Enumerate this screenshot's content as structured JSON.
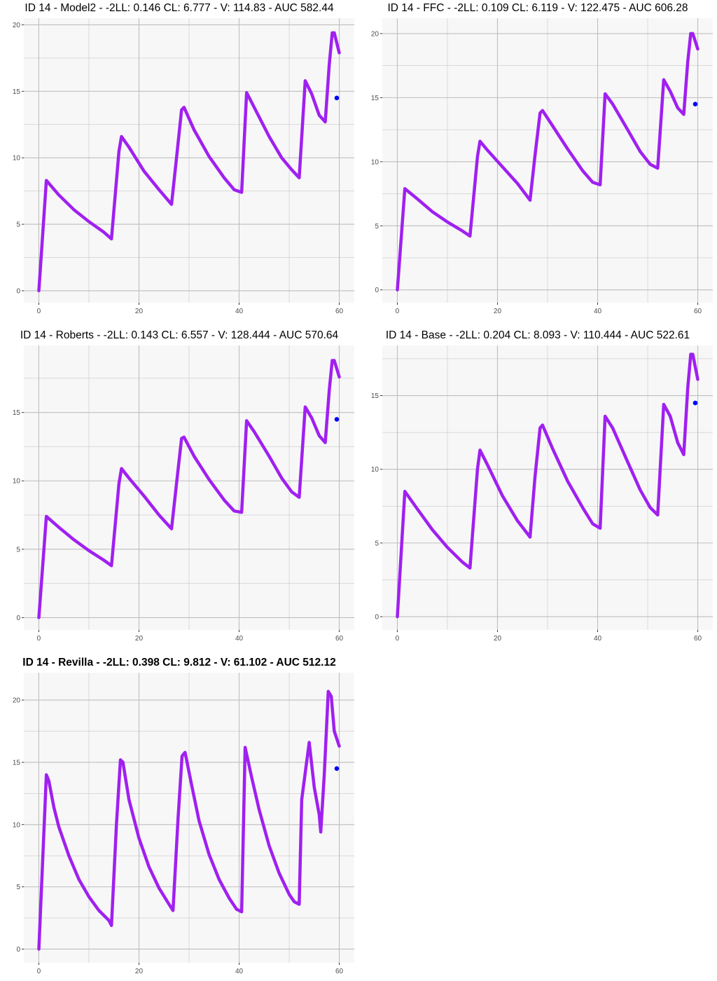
{
  "colors": {
    "line": "#A020F0",
    "point": "#0000FF",
    "panel_bg": "#F7F7F7",
    "grid": "#BEBEBE",
    "tick_text": "#4D4D4D"
  },
  "chart_data": [
    {
      "type": "line",
      "title": "ID 14 - Model2 - -2LL: 0.146 CL: 6.777 - V: 114.83 - AUC 582.44",
      "xlim": [
        -3,
        63
      ],
      "ylim": [
        -0.9,
        20.5
      ],
      "x_ticks": [
        0,
        20,
        40,
        60
      ],
      "y_ticks": [
        0,
        5,
        10,
        15,
        20
      ],
      "grid": true,
      "series": [
        {
          "x": [
            0,
            1.5,
            4,
            7,
            10,
            13,
            14.5,
            16,
            16.5,
            18,
            21,
            24,
            26.5,
            27.5,
            28.5,
            29,
            31,
            34,
            37,
            39,
            40.5,
            41.5,
            43,
            46,
            48.5,
            50.5,
            52,
            53.2,
            54.5,
            56,
            57.2,
            58,
            58.6,
            59,
            60
          ],
          "y": [
            0,
            8.3,
            7.2,
            6.1,
            5.2,
            4.4,
            3.9,
            10.5,
            11.6,
            10.8,
            9.0,
            7.6,
            6.5,
            10.0,
            13.6,
            13.8,
            12.1,
            10.1,
            8.5,
            7.6,
            7.4,
            14.9,
            13.8,
            11.6,
            10.0,
            9.1,
            8.5,
            15.8,
            14.8,
            13.2,
            12.7,
            17.0,
            19.4,
            19.4,
            17.9
          ]
        },
        {
          "x": [
            59.5
          ],
          "y": [
            14.5
          ]
        }
      ]
    },
    {
      "type": "line",
      "title": "ID 14 - FFC - -2LL: 0.109 CL: 6.119 - V: 122.475 - AUC 606.28",
      "xlim": [
        -3,
        63
      ],
      "ylim": [
        -1,
        21.2
      ],
      "x_ticks": [
        0,
        20,
        40,
        60
      ],
      "y_ticks": [
        0,
        5,
        10,
        15,
        20
      ],
      "grid": true,
      "series": [
        {
          "x": [
            0,
            1.5,
            4,
            7,
            10,
            13,
            14.5,
            16,
            16.5,
            18,
            21,
            24,
            26.5,
            27.5,
            28.5,
            29,
            31,
            34,
            37,
            39,
            40.5,
            41.5,
            43,
            46,
            48.5,
            50.5,
            52,
            53.2,
            54.5,
            56,
            57.2,
            58,
            58.6,
            59,
            60
          ],
          "y": [
            0,
            7.9,
            7.1,
            6.1,
            5.3,
            4.6,
            4.2,
            10.4,
            11.6,
            10.9,
            9.6,
            8.3,
            7.0,
            10.5,
            13.8,
            14.0,
            12.8,
            11.0,
            9.3,
            8.4,
            8.2,
            15.3,
            14.5,
            12.5,
            10.8,
            9.8,
            9.5,
            16.4,
            15.5,
            14.2,
            13.7,
            17.8,
            20.0,
            20.0,
            18.8
          ]
        },
        {
          "x": [
            59.5
          ],
          "y": [
            14.5
          ]
        }
      ]
    },
    {
      "type": "line",
      "title": "ID 14 - Roberts - -2LL: 0.143 CL: 6.557 - V: 128.444 - AUC 570.64",
      "xlim": [
        -3,
        63
      ],
      "ylim": [
        -0.9,
        19.9
      ],
      "x_ticks": [
        0,
        20,
        40,
        60
      ],
      "y_ticks": [
        0,
        5,
        10,
        15
      ],
      "grid": true,
      "series": [
        {
          "x": [
            0,
            1.5,
            4,
            7,
            10,
            13,
            14.5,
            16,
            16.5,
            18,
            21,
            24,
            26.5,
            27.5,
            28.5,
            29,
            31,
            34,
            37,
            39,
            40.5,
            41.5,
            43,
            46,
            48.5,
            50.5,
            52,
            53.2,
            54.5,
            56,
            57.2,
            58,
            58.6,
            59,
            60
          ],
          "y": [
            0,
            7.4,
            6.6,
            5.7,
            4.9,
            4.2,
            3.8,
            9.8,
            10.9,
            10.2,
            8.9,
            7.5,
            6.5,
            9.8,
            13.1,
            13.2,
            11.8,
            10.1,
            8.6,
            7.8,
            7.7,
            14.4,
            13.6,
            11.8,
            10.2,
            9.2,
            8.8,
            15.4,
            14.6,
            13.3,
            12.8,
            16.6,
            18.8,
            18.8,
            17.6
          ]
        },
        {
          "x": [
            59.5
          ],
          "y": [
            14.5
          ]
        }
      ]
    },
    {
      "type": "line",
      "title": "ID 14 - Base - -2LL: 0.204 CL: 8.093 - V: 110.444 - AUC 522.61",
      "xlim": [
        -3,
        63
      ],
      "ylim": [
        -0.9,
        18.4
      ],
      "x_ticks": [
        0,
        20,
        40,
        60
      ],
      "y_ticks": [
        0,
        5,
        10,
        15
      ],
      "grid": true,
      "series": [
        {
          "x": [
            0,
            1.5,
            4,
            7,
            10,
            13,
            14.5,
            16,
            16.5,
            18,
            21,
            24,
            26.5,
            27.5,
            28.5,
            29,
            31,
            34,
            37,
            39,
            40.5,
            41.5,
            43,
            46,
            48.5,
            50.5,
            52,
            53.2,
            54.5,
            56,
            57.2,
            58,
            58.6,
            59,
            60
          ],
          "y": [
            0,
            8.5,
            7.3,
            5.9,
            4.7,
            3.7,
            3.3,
            10.0,
            11.3,
            10.3,
            8.2,
            6.5,
            5.4,
            9.5,
            12.8,
            13.0,
            11.4,
            9.2,
            7.4,
            6.3,
            6.0,
            13.6,
            12.8,
            10.5,
            8.6,
            7.4,
            6.9,
            14.4,
            13.6,
            11.8,
            11.0,
            15.5,
            17.8,
            17.8,
            16.1
          ]
        },
        {
          "x": [
            59.5
          ],
          "y": [
            14.5
          ]
        }
      ]
    },
    {
      "type": "line",
      "title": "ID 14 - Revilla - -2LL: 0.398 CL: 9.812 - V: 61.102 - AUC 512.12",
      "xlim": [
        -3,
        63
      ],
      "ylim": [
        -1.1,
        22.2
      ],
      "x_ticks": [
        0,
        20,
        40,
        60
      ],
      "y_ticks": [
        0,
        5,
        10,
        15,
        20
      ],
      "grid": true,
      "series": [
        {
          "x": [
            0,
            1.5,
            2,
            3,
            4,
            6,
            8,
            10,
            12,
            14,
            14.5,
            15.5,
            16.3,
            16.8,
            18,
            20,
            22,
            24,
            26,
            26.8,
            27.8,
            28.6,
            29.2,
            30.5,
            32,
            34,
            36,
            38,
            39.5,
            40.5,
            41.2,
            42.5,
            44,
            46,
            48,
            50,
            51,
            52,
            52.5,
            54,
            55,
            56,
            56.3,
            57,
            57.8,
            58.4,
            59,
            60
          ],
          "y": [
            0,
            14.0,
            13.5,
            11.4,
            9.8,
            7.5,
            5.6,
            4.2,
            3.1,
            2.3,
            1.9,
            10.0,
            15.2,
            15.0,
            12.0,
            8.9,
            6.6,
            4.9,
            3.6,
            3.1,
            10.5,
            15.5,
            15.8,
            13.2,
            10.3,
            7.6,
            5.6,
            4.1,
            3.2,
            3.0,
            16.2,
            13.8,
            11.2,
            8.3,
            6.1,
            4.4,
            3.8,
            3.6,
            12.0,
            16.6,
            13.0,
            10.8,
            9.4,
            14.0,
            20.7,
            20.3,
            17.5,
            16.3
          ]
        },
        {
          "x": [
            59.5
          ],
          "y": [
            14.5
          ]
        }
      ]
    }
  ]
}
